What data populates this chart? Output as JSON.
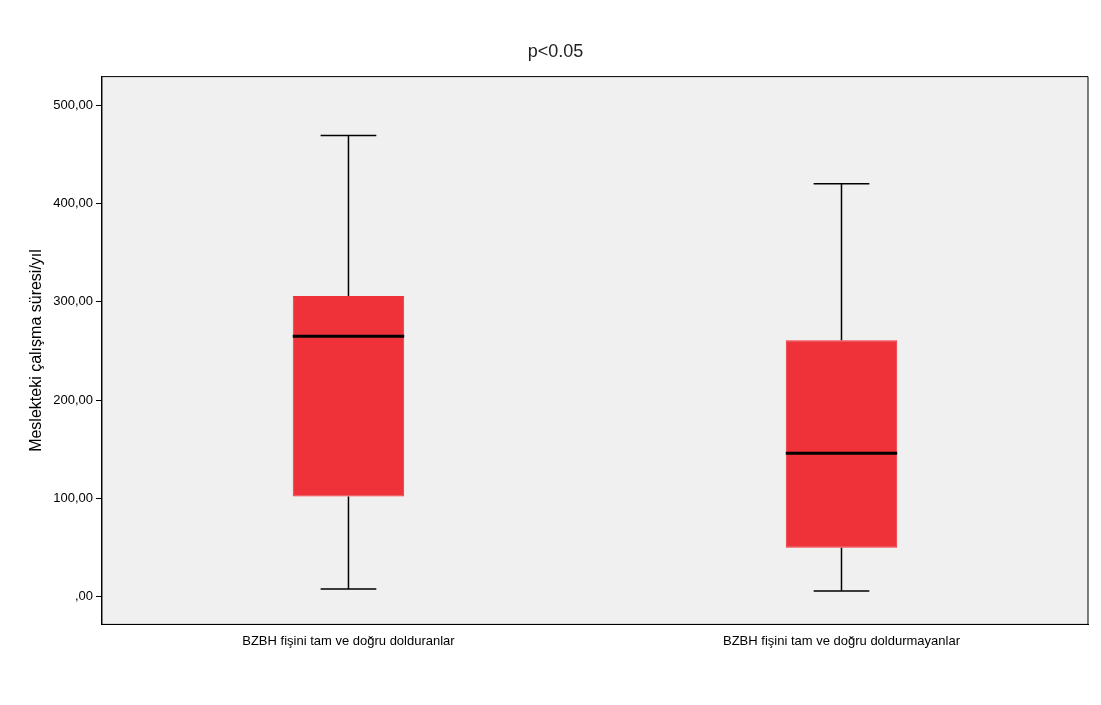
{
  "chart_data": {
    "type": "box",
    "title": "p<0.05",
    "ylabel": "Meslekteki çalışma süresi/yıl",
    "categories": [
      "BZBH fişini tam ve doğru dolduranlar",
      "BZBH fişini tam ve doğru doldurmayanlar"
    ],
    "series": [
      {
        "color": "#ef323a",
        "boxes": [
          {
            "low": 8,
            "q1": 102,
            "median": 265,
            "q3": 306,
            "high": 469
          },
          {
            "low": 6,
            "q1": 50,
            "median": 146,
            "q3": 261,
            "high": 420
          }
        ]
      }
    ],
    "ylim": [
      -28,
      529
    ],
    "yticks": [
      {
        "value": 0,
        "label": ",00"
      },
      {
        "value": 100,
        "label": "100,00"
      },
      {
        "value": 200,
        "label": "200,00"
      },
      {
        "value": 300,
        "label": "300,00"
      },
      {
        "value": 400,
        "label": "400,00"
      },
      {
        "value": 500,
        "label": "500,00"
      }
    ],
    "grid": false,
    "legend": false
  }
}
